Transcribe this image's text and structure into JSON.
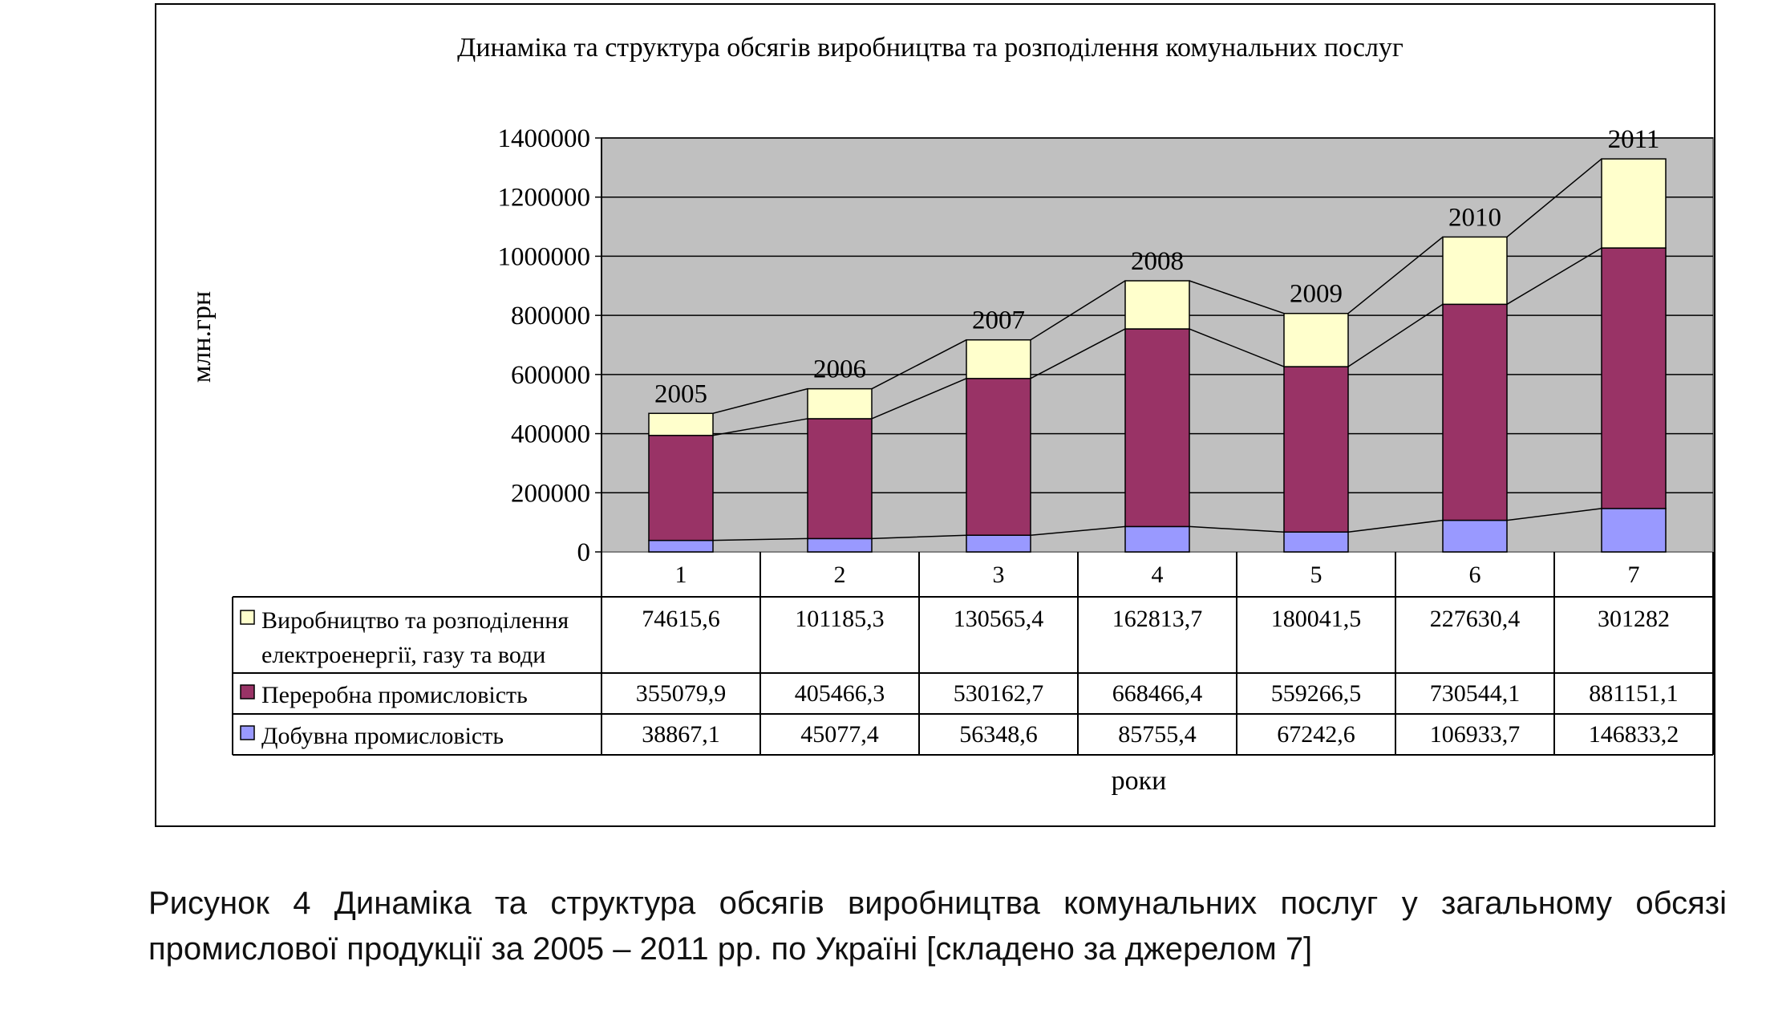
{
  "chart_data": {
    "type": "bar",
    "stacked": true,
    "title": "Динаміка та структура обсягів виробництва та розподілення  комунальних послуг",
    "ylabel": "млн.грн",
    "xlabel": "роки",
    "ylim": [
      0,
      1400000
    ],
    "yticks": [
      "0",
      "200000",
      "400000",
      "600000",
      "800000",
      "1000000",
      "1200000",
      "1400000"
    ],
    "categories": [
      "1",
      "2",
      "3",
      "4",
      "5",
      "6",
      "7"
    ],
    "year_labels": [
      "2005",
      "2006",
      "2007",
      "2008",
      "2009",
      "2010",
      "2011"
    ],
    "grid": true,
    "plot_background": "#c0c0c0",
    "series": [
      {
        "name": "Добувна промисловість",
        "color": "#9999ff",
        "labels": [
          "38867,1",
          "45077,4",
          "56348,6",
          "85755,4",
          "67242,6",
          "106933,7",
          "146833,2"
        ],
        "values": [
          38867.1,
          45077.4,
          56348.6,
          85755.4,
          67242.6,
          106933.7,
          146833.2
        ]
      },
      {
        "name": "Переробна промисловість",
        "color": "#993366",
        "labels": [
          "355079,9",
          "405466,3",
          "530162,7",
          "668466,4",
          "559266,5",
          "730544,1",
          "881151,1"
        ],
        "values": [
          355079.9,
          405466.3,
          530162.7,
          668466.4,
          559266.5,
          730544.1,
          881151.1
        ]
      },
      {
        "name": "Виробництво та розподілення електроенергії, газу та води",
        "name_lines": [
          "Виробництво та розподілення",
          "електроенергії, газу та води"
        ],
        "color": "#ffffcc",
        "labels": [
          "74615,6",
          "101185,3",
          "130565,4",
          "162813,7",
          "180041,5",
          "227630,4",
          "301282"
        ],
        "values": [
          74615.6,
          101185.3,
          130565.4,
          162813.7,
          180041.5,
          227630.4,
          301282
        ]
      }
    ],
    "table_row_order": [
      2,
      1,
      0
    ]
  },
  "caption": "Рисунок 4 Динаміка та структура обсягів виробництва комунальних послуг у загальному обсязі промислової продукції за 2005 – 2011 рр. по Україні [складено за джерелом 7]"
}
